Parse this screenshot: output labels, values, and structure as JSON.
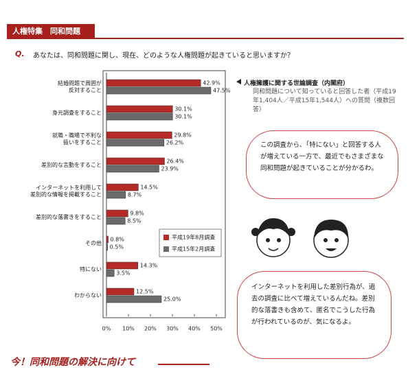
{
  "header": {
    "title": "人権特集　同和問題"
  },
  "question": {
    "mark": "Q.",
    "text": "あなたは、同和問題に関し、現在、どのような人権問題が起きていると思いますか？"
  },
  "survey": {
    "title": "人権擁護に関する世論調査（内閣府）",
    "note": "同和問題について知っていると回答した者（平成19年1,404人／平成15年1,544人）への質問（複数回答）"
  },
  "bubbles": [
    "この調査から、「特にない」と回答する人が増えている一方で、最近でもさまざまな同和問題が起きていることが分かるわ。",
    "インターネットを利用した差別行為が、過去の調査に比べて増えているんだね。差別的な落書きも含めて、匿名でこうした行為が行われているのが、気になるよ。"
  ],
  "footer": {
    "title": "今！同和問題の解決に向けて"
  },
  "chart_data": {
    "type": "hbar",
    "categories": [
      "結婚問題で周囲が\n反対すること",
      "身元調査をすること",
      "就職・職場で不利な\n扱いをすること",
      "差別的な言動をすること",
      "インターネットを利用して\n差別的な情報を掲載すること",
      "差別的な落書きをすること",
      "その他",
      "特にない",
      "わからない"
    ],
    "series": [
      {
        "name": "平成19年8月調査",
        "color": "#b52a26",
        "values": [
          42.9,
          30.1,
          29.8,
          26.4,
          14.5,
          9.8,
          0.8,
          14.3,
          12.5
        ],
        "value_labels": [
          "42.9%",
          "30.1%",
          "29.8%",
          "26.4%",
          "14.5%",
          "9.8%",
          "0.8%",
          "14.3%",
          "12.5%"
        ]
      },
      {
        "name": "平成15年2月調査",
        "color": "#6b6b6b",
        "values": [
          47.5,
          30.1,
          26.2,
          23.9,
          8.7,
          8.5,
          0.5,
          3.5,
          25.0
        ],
        "value_labels": [
          "47.5%",
          "30.1%",
          "26.2%",
          "23.9%",
          "8.7%",
          "8.5%",
          "0.5%",
          "3.5%",
          "25.0%"
        ]
      }
    ],
    "xlim": [
      0,
      50
    ],
    "xticks": [
      {
        "value": 0,
        "label": "0%"
      },
      {
        "value": 10,
        "label": "10%"
      },
      {
        "value": 20,
        "label": "20%"
      },
      {
        "value": 30,
        "label": "30%"
      },
      {
        "value": 40,
        "label": "40%"
      },
      {
        "value": 50,
        "label": "50%"
      }
    ]
  }
}
